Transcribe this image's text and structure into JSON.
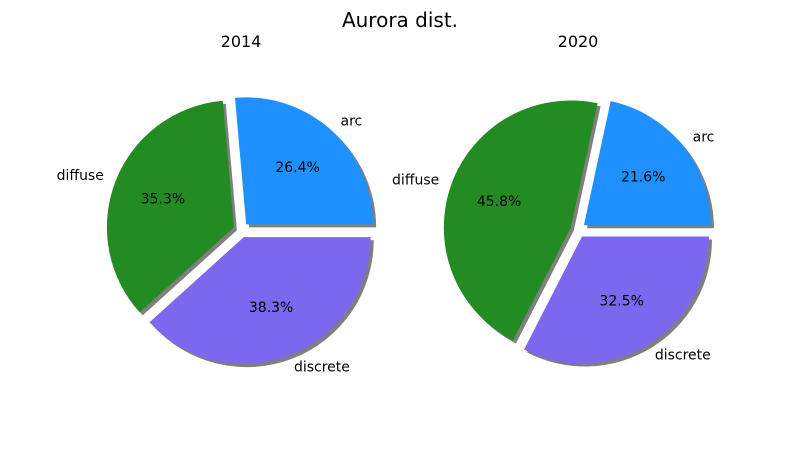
{
  "figure": {
    "title": "Aurora dist."
  },
  "chart_data": [
    {
      "type": "pie",
      "title": "2014",
      "categories": [
        "arc",
        "diffuse",
        "discrete"
      ],
      "values": [
        26.4,
        35.3,
        38.3
      ],
      "value_labels": [
        "26.4%",
        "35.3%",
        "38.3%"
      ],
      "colors": [
        "#1e90ff",
        "#228b22",
        "#7b68ee"
      ],
      "exploded": true,
      "shadow": true,
      "start_angle_deg": 0,
      "direction": "counterclockwise"
    },
    {
      "type": "pie",
      "title": "2020",
      "categories": [
        "arc",
        "diffuse",
        "discrete"
      ],
      "values": [
        21.6,
        45.8,
        32.5
      ],
      "value_labels": [
        "21.6%",
        "45.8%",
        "32.5%"
      ],
      "colors": [
        "#1e90ff",
        "#228b22",
        "#7b68ee"
      ],
      "exploded": true,
      "shadow": true,
      "start_angle_deg": 0,
      "direction": "counterclockwise"
    }
  ]
}
